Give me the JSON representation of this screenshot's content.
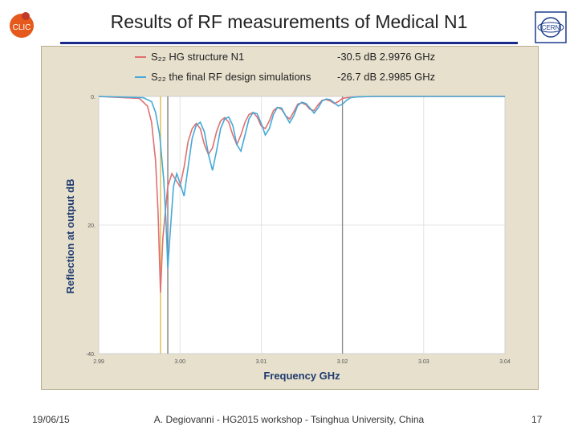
{
  "slide": {
    "title": "Results of RF measurements of Medical N1",
    "footer_date": "19/06/15",
    "footer_center": "A. Degiovanni - HG2015 workshop - Tsinghua University, China",
    "page_number": "17"
  },
  "logos": {
    "left": "CLIC logo",
    "left_text": "CLIC",
    "right": "CERN logo",
    "right_text": "CERN"
  },
  "chart_data": {
    "type": "line",
    "xlabel": "Frequency GHz",
    "ylabel": "Reflection at output dB",
    "xlim": [
      2.99,
      3.04
    ],
    "ylim": [
      -40,
      0
    ],
    "x_ticks": [
      "2.99",
      "3.00",
      "3.01",
      "3.02",
      "3.03",
      "3.04"
    ],
    "y_ticks": [
      "0.",
      "20.",
      "-40."
    ],
    "grid": true,
    "legend_position": "top",
    "legend": [
      {
        "label": "S₂₂ HG structure N1",
        "marker_text": "-30.5 dB  2.9976 GHz"
      },
      {
        "label": "S₂₂ the final RF design simulations",
        "marker_text": "-26.7 dB  2.9985 GHz"
      }
    ],
    "series": [
      {
        "name": "S₂₂ HG structure N1",
        "color": "#e07070",
        "x": [
          2.99,
          2.995,
          2.996,
          2.9965,
          2.997,
          2.9973,
          2.9976,
          2.9979,
          2.9985,
          2.999,
          2.9995,
          3.0,
          3.0005,
          3.001,
          3.0015,
          3.002,
          3.0025,
          3.003,
          3.0035,
          3.004,
          3.0045,
          3.005,
          3.0055,
          3.006,
          3.0065,
          3.007,
          3.0075,
          3.008,
          3.0085,
          3.009,
          3.0095,
          3.01,
          3.0105,
          3.011,
          3.0115,
          3.012,
          3.0125,
          3.013,
          3.0135,
          3.014,
          3.0145,
          3.015,
          3.0155,
          3.016,
          3.0165,
          3.017,
          3.0175,
          3.018,
          3.0185,
          3.019,
          3.0195,
          3.02,
          3.0205,
          3.021,
          3.022,
          3.024,
          3.03,
          3.04
        ],
        "values": [
          0.0,
          -0.3,
          -1.5,
          -4,
          -10,
          -18,
          -30.5,
          -22,
          -14,
          -12,
          -13,
          -14,
          -11,
          -7,
          -5,
          -4.2,
          -5,
          -7.5,
          -9,
          -8,
          -5.5,
          -3.8,
          -3.3,
          -4,
          -6,
          -7.5,
          -6,
          -4,
          -2.8,
          -2.5,
          -3.2,
          -4.6,
          -5,
          -3.8,
          -2.2,
          -1.7,
          -2.0,
          -3.0,
          -3.5,
          -2.4,
          -1.2,
          -1.0,
          -1.3,
          -2.0,
          -2.2,
          -1.3,
          -0.6,
          -0.5,
          -0.7,
          -1.1,
          -0.8,
          -0.3,
          -0.2,
          -0.15,
          -0.05,
          0.0,
          0.0,
          0.0
        ]
      },
      {
        "name": "S₂₂ the final RF design simulations",
        "color": "#45a9d8",
        "x": [
          2.99,
          2.9955,
          2.9965,
          2.997,
          2.9975,
          2.998,
          2.9983,
          2.9985,
          2.9988,
          2.9992,
          2.9996,
          3.0,
          3.0005,
          3.001,
          3.0015,
          3.002,
          3.0025,
          3.003,
          3.0035,
          3.004,
          3.0045,
          3.005,
          3.0055,
          3.006,
          3.0065,
          3.007,
          3.0075,
          3.008,
          3.0085,
          3.009,
          3.0095,
          3.01,
          3.0105,
          3.011,
          3.0115,
          3.012,
          3.0125,
          3.013,
          3.0135,
          3.014,
          3.0145,
          3.015,
          3.0155,
          3.016,
          3.0165,
          3.017,
          3.0175,
          3.018,
          3.0185,
          3.019,
          3.0195,
          3.02,
          3.0205,
          3.021,
          3.0215,
          3.022,
          3.024,
          3.03,
          3.04
        ],
        "values": [
          0.0,
          -0.2,
          -0.8,
          -2.5,
          -6,
          -13,
          -20,
          -26.7,
          -21,
          -14,
          -12,
          -13.5,
          -15.5,
          -11,
          -6.5,
          -4.5,
          -4,
          -5.5,
          -9,
          -11.5,
          -8.5,
          -5,
          -3.5,
          -3.2,
          -4.5,
          -7.5,
          -8.5,
          -6,
          -3.5,
          -2.5,
          -2.7,
          -4.2,
          -6,
          -5,
          -2.8,
          -1.7,
          -1.8,
          -3,
          -4.1,
          -3.0,
          -1.4,
          -0.9,
          -1.1,
          -1.8,
          -2.6,
          -1.8,
          -0.7,
          -0.4,
          -0.5,
          -1.0,
          -1.5,
          -1.2,
          -0.6,
          -0.2,
          -0.1,
          -0.05,
          0.0,
          0.0,
          0.0
        ]
      }
    ],
    "markers": [
      {
        "x": 2.9976,
        "color": "#d9b640"
      },
      {
        "x": 2.9985,
        "color": "#777777"
      },
      {
        "x": 3.02,
        "color": "#888888"
      }
    ]
  }
}
